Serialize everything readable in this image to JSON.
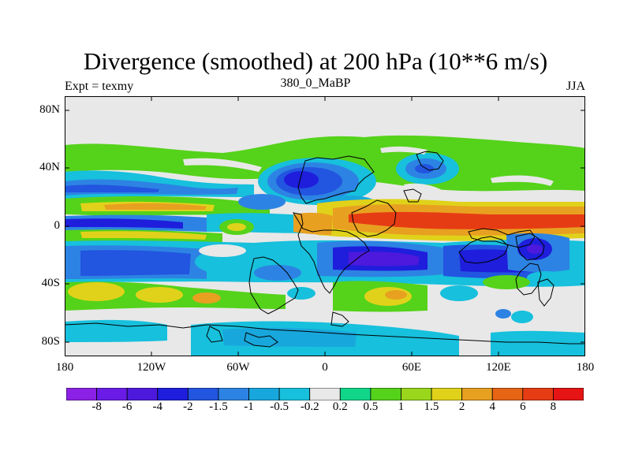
{
  "title": "Divergence (smoothed) at 200 hPa (10**6 m/s)",
  "experiment_label": "Expt = texmy",
  "center_label": "380_0_MaBP",
  "season_label": "JJA",
  "y_axis": {
    "tick_labels": [
      "80N",
      "40N",
      "0",
      "40S",
      "80S"
    ],
    "tick_values": [
      80,
      40,
      0,
      -40,
      -80
    ]
  },
  "x_axis": {
    "tick_labels": [
      "180",
      "120W",
      "60W",
      "0",
      "60E",
      "120E",
      "180"
    ],
    "tick_values": [
      -180,
      -120,
      -60,
      0,
      60,
      120,
      180
    ]
  },
  "colorbar": {
    "labels": [
      "-8",
      "-6",
      "-4",
      "-2",
      "-1.5",
      "-1",
      "-0.5",
      "-0.2",
      "0.2",
      "0.5",
      "1",
      "1.5",
      "2",
      "4",
      "6",
      "8"
    ],
    "colors": [
      "#8c21e6",
      "#6a1ce6",
      "#4d19dc",
      "#1e1edc",
      "#2255e0",
      "#2d83e3",
      "#18a7dc",
      "#17c0dc",
      "#e8e8e8",
      "#11d68a",
      "#55d21a",
      "#99d61c",
      "#e0d21a",
      "#e8a021",
      "#e66414",
      "#e63c14",
      "#e61414"
    ]
  },
  "colors": {
    "strong_div": "#e63c14",
    "div_orange": "#e8a021",
    "div_yellow": "#e0d21a",
    "div_lime": "#99d61c",
    "div_green": "#55d21a",
    "div_teal": "#11d68a",
    "neutral": "#e8e8e8",
    "conv_cyan": "#17c0dc",
    "conv_sky": "#18a7dc",
    "conv_blue": "#2d83e3",
    "conv_mid": "#2255e0",
    "conv_deep": "#1e1edc",
    "conv_navy": "#4d19dc"
  }
}
